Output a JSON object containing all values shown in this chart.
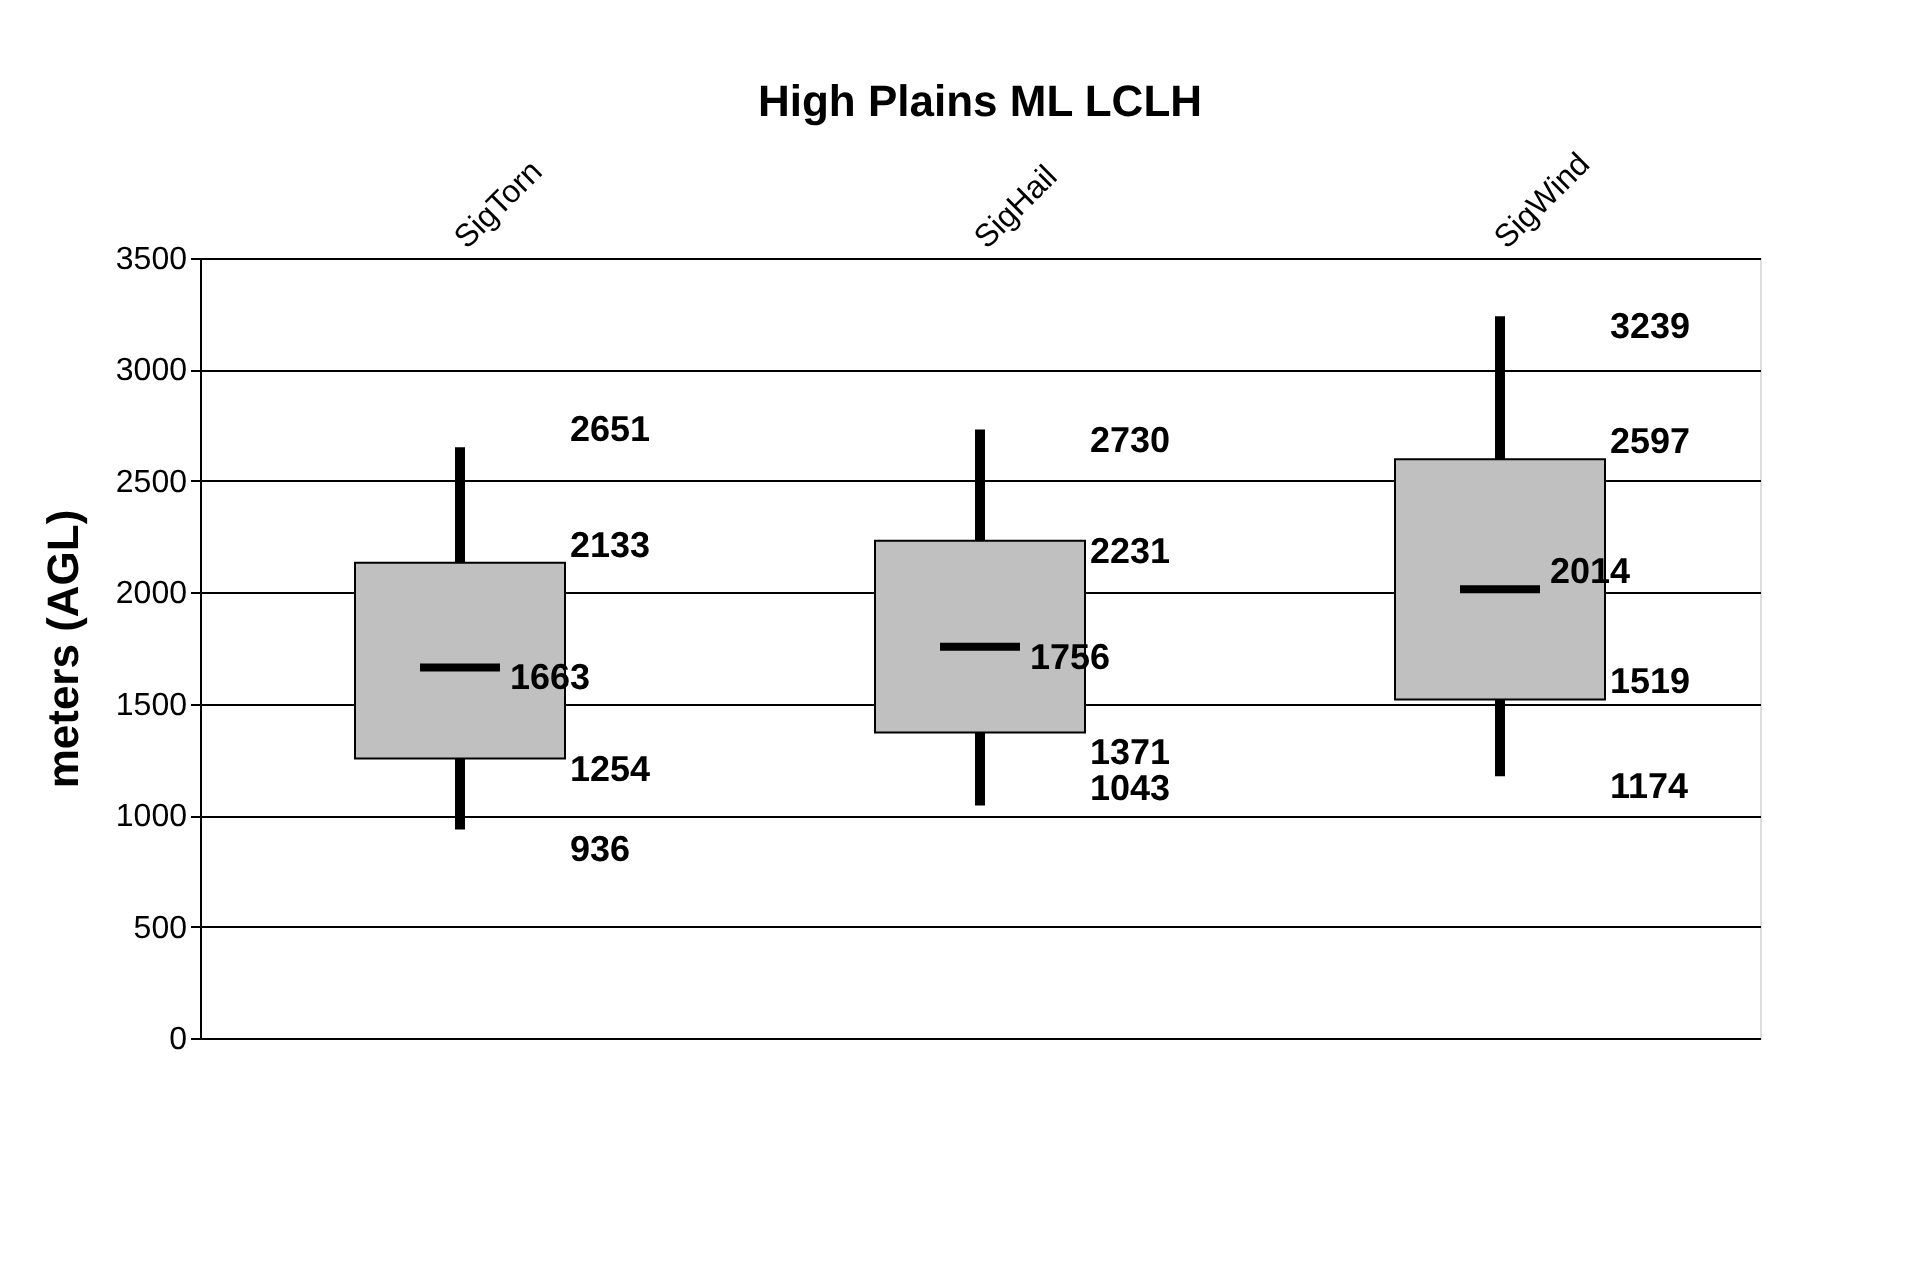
{
  "chart_data": {
    "type": "box",
    "title": "High Plains ML LCLH",
    "ylabel": "meters (AGL)",
    "categories": [
      "SigTorn",
      "SigHail",
      "SigWind"
    ],
    "series": [
      {
        "color": "#c0c0c0",
        "boxes": [
          {
            "low": 936,
            "q1": 1254,
            "median": 1663,
            "q3": 2133,
            "high": 2651
          },
          {
            "low": 1043,
            "q1": 1371,
            "median": 1756,
            "q3": 2231,
            "high": 2730
          },
          {
            "low": 1174,
            "q1": 1519,
            "median": 2014,
            "q3": 2597,
            "high": 3239
          }
        ]
      }
    ],
    "ylim": [
      0,
      3500
    ],
    "yticks": [
      0,
      500,
      1000,
      1500,
      2000,
      2500,
      3000,
      3500
    ],
    "grid": "y",
    "data_labels": true,
    "annotations": [
      "936",
      "1254",
      "1663",
      "2133",
      "2651",
      "1043",
      "1371",
      "1756",
      "2231",
      "2730",
      "1174",
      "1519",
      "2014",
      "2597",
      "3239"
    ]
  }
}
